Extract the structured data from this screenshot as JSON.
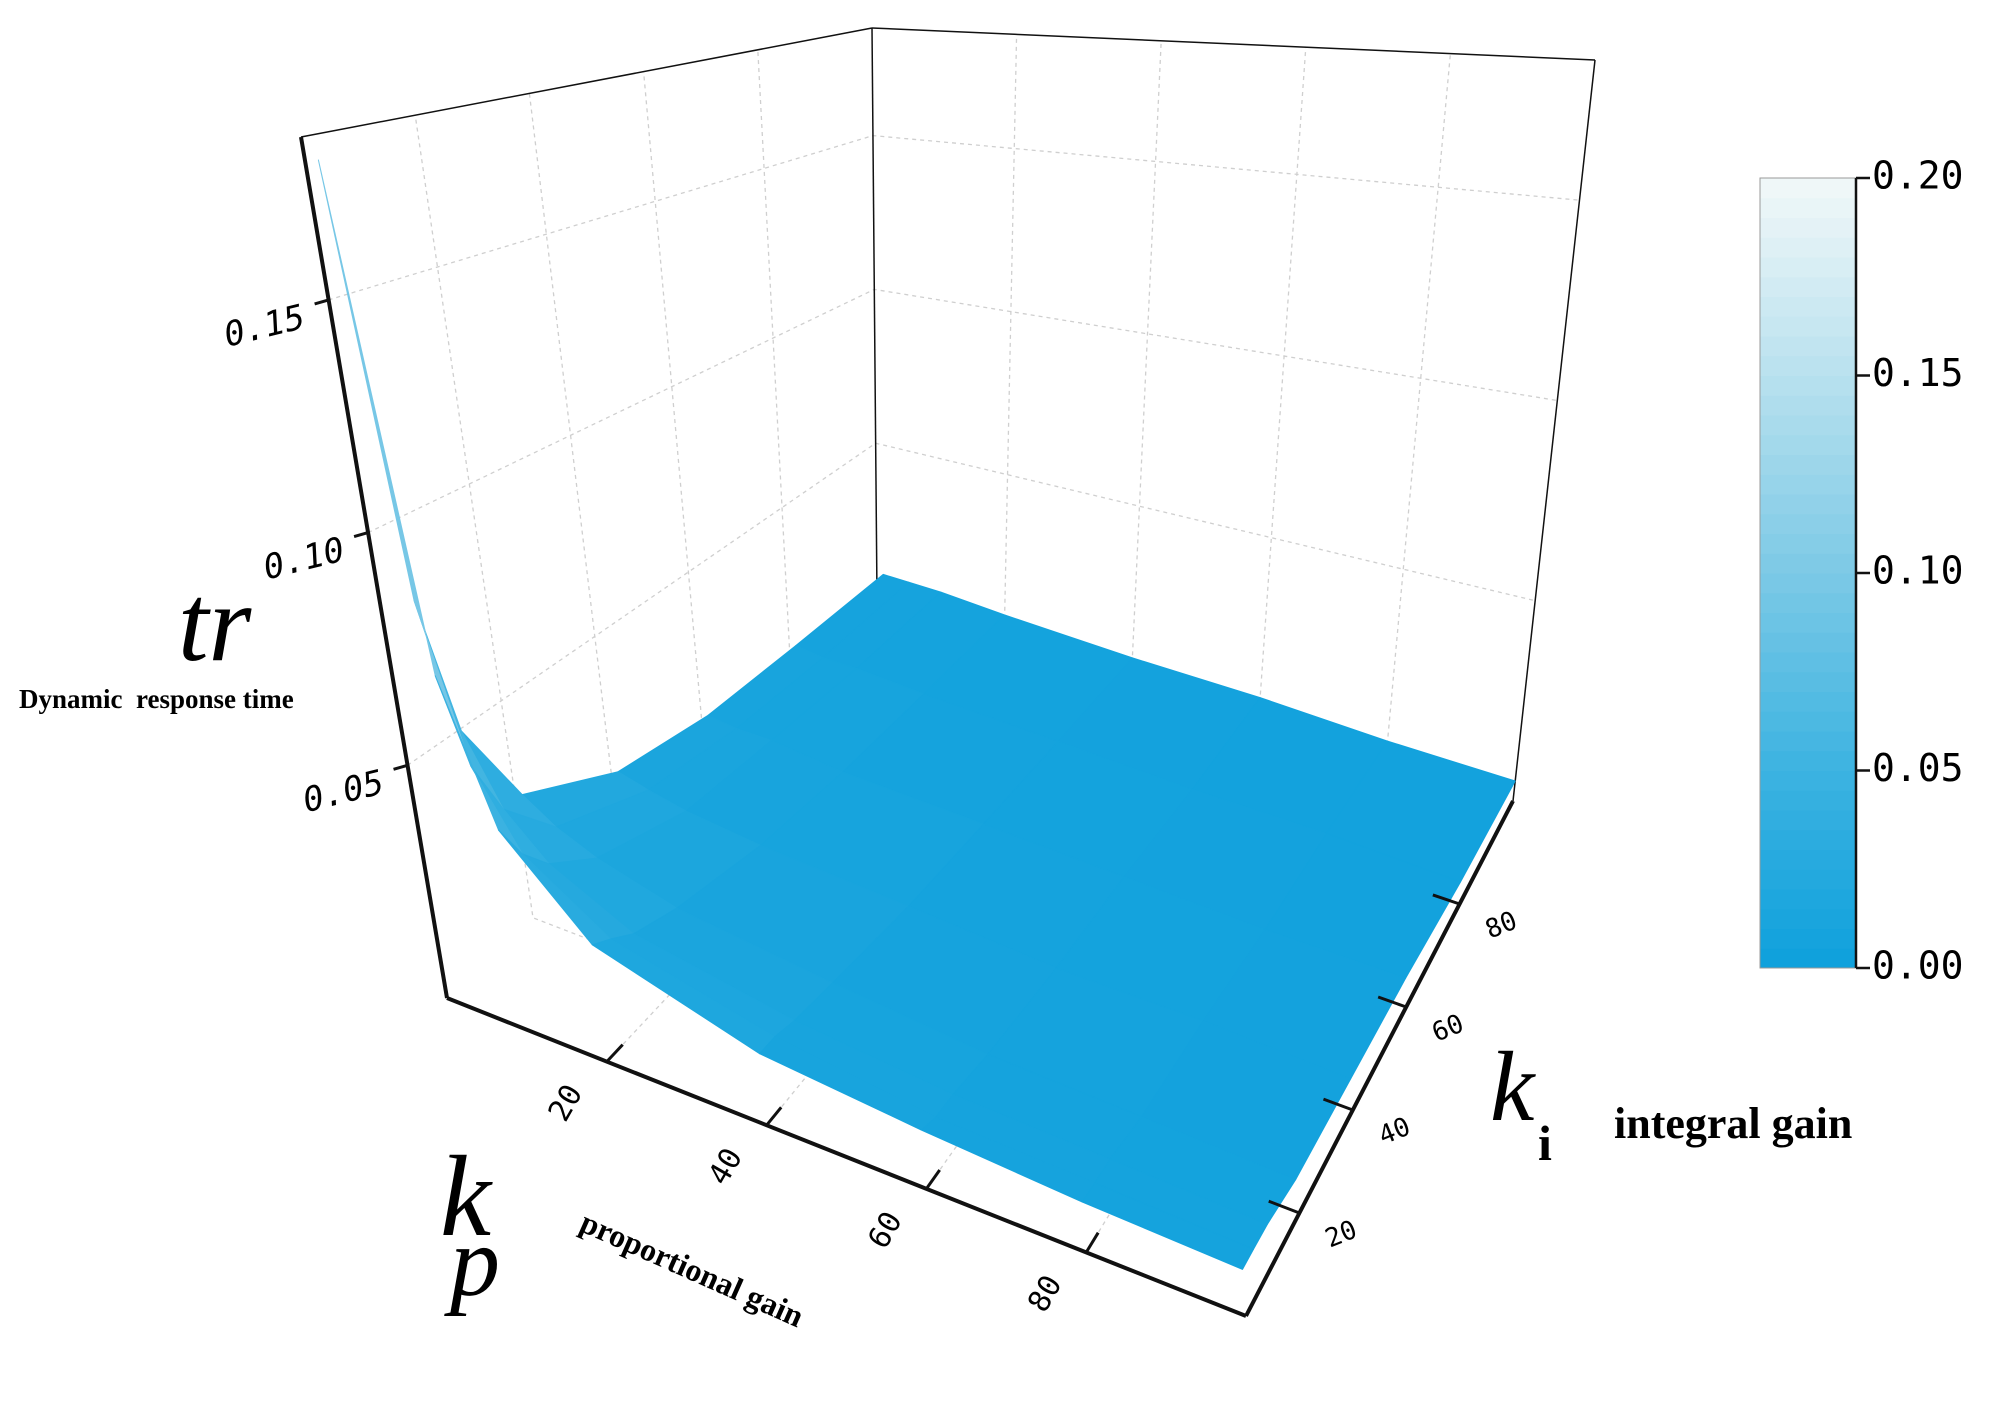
{
  "chart_data": {
    "type": "surface",
    "zsymbol": "tr",
    "zlabel": "Dynamic  response time",
    "xsymbol": "k",
    "xsymbol_sub": "p",
    "xlabel": "proportional gain",
    "ysymbol": "k",
    "ysymbol_sub": "i",
    "ylabel": "integral gain",
    "x": [
      1,
      5,
      10,
      20,
      40,
      60,
      80,
      100
    ],
    "y": [
      1,
      5,
      10,
      20,
      40,
      60,
      80,
      100
    ],
    "z": [
      [
        0.18,
        0.071,
        0.041,
        0.023,
        0.013,
        0.01,
        0.008,
        0.007
      ],
      [
        0.083,
        0.049,
        0.033,
        0.021,
        0.013,
        0.009,
        0.008,
        0.007
      ],
      [
        0.051,
        0.036,
        0.027,
        0.018,
        0.012,
        0.009,
        0.008,
        0.007
      ],
      [
        0.029,
        0.024,
        0.02,
        0.015,
        0.011,
        0.008,
        0.007,
        0.006
      ],
      [
        0.017,
        0.015,
        0.013,
        0.011,
        0.009,
        0.007,
        0.007,
        0.006
      ],
      [
        0.012,
        0.011,
        0.011,
        0.009,
        0.008,
        0.007,
        0.006,
        0.006
      ],
      [
        0.01,
        0.009,
        0.009,
        0.008,
        0.007,
        0.006,
        0.006,
        0.005
      ],
      [
        0.008,
        0.008,
        0.008,
        0.007,
        0.006,
        0.006,
        0.005,
        0.005
      ]
    ],
    "xlim": [
      0,
      100
    ],
    "ylim": [
      0,
      100
    ],
    "zlim": [
      0,
      0.185
    ],
    "xticks": [
      20,
      40,
      60,
      80
    ],
    "yticks": [
      20,
      40,
      60,
      80
    ],
    "zticks": [
      0.05,
      {
        "value": 0.1,
        "label": "0.10"
      },
      0.15
    ],
    "grid": true,
    "colormap": [
      "#0ea0dc",
      "#3cb3e1",
      "#7cc9e6",
      "#b8e1ee",
      "#f2f8f8"
    ],
    "colorbar": {
      "lim": [
        0,
        0.2
      ],
      "ticks": [
        {
          "value": 0,
          "label": "0.00"
        },
        0.05,
        {
          "value": 0.1,
          "label": "0.10"
        },
        0.15,
        {
          "value": 0.2,
          "label": "0.20"
        }
      ]
    }
  }
}
